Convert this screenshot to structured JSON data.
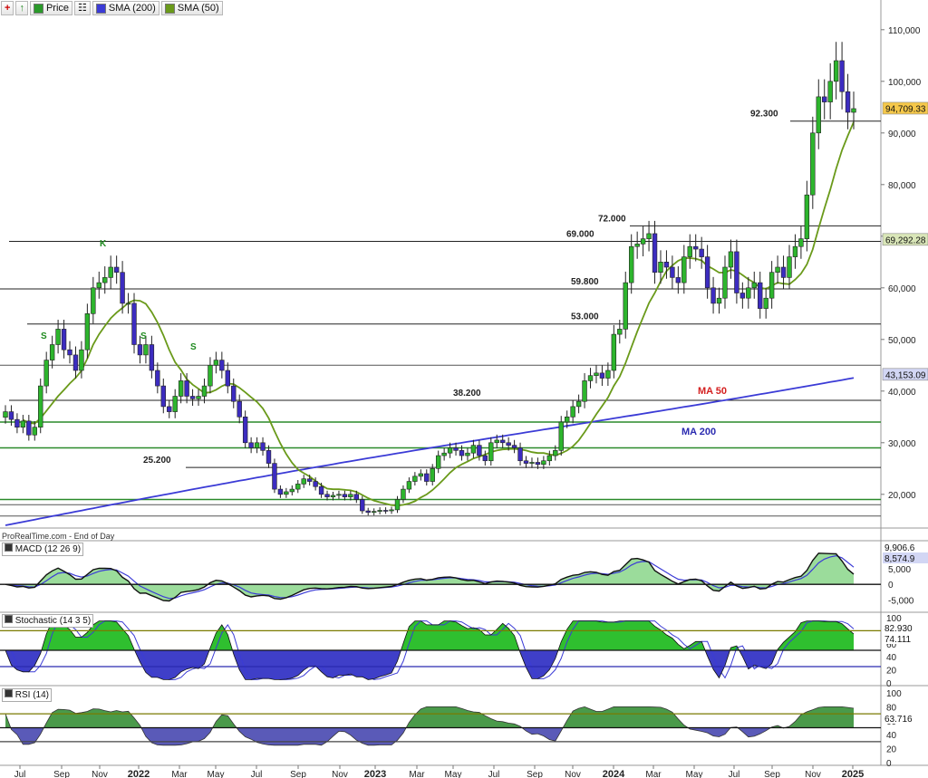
{
  "toolbar": {
    "price_label": "Price",
    "sma200_label": "SMA (200)",
    "sma50_label": "SMA (50)",
    "sma200_color": "#3b3bd6",
    "sma50_color": "#6a9a1a"
  },
  "footer_text": "ProRealTime.com - End of Day",
  "panels": {
    "macd_label": "MACD (12 26 9)",
    "stoch_label": "Stochastic (14 3 5)",
    "rsi_label": "RSI (14)"
  },
  "chart_data": [
    {
      "type": "candlestick",
      "x_ticks": [
        "Jul",
        "Sep",
        "Nov",
        "2022",
        "Mar",
        "May",
        "Jul",
        "Sep",
        "Nov",
        "2023",
        "Mar",
        "May",
        "Jul",
        "Sep",
        "Nov",
        "2024",
        "Mar",
        "May",
        "Jul",
        "Sep",
        "Nov",
        "2025"
      ],
      "y_ticks": [
        "20,000",
        "30,000",
        "40,000",
        "50,000",
        "60,000",
        "70,000",
        "80,000",
        "90,000",
        "100,000",
        "110,000"
      ],
      "ylim": [
        14000,
        114000
      ],
      "last_price_label": "94,709.33",
      "sma50_value_label": "69,292.28",
      "sma200_value_label": "43,153.09",
      "levels": [
        {
          "value": 92300,
          "label": "92.300"
        },
        {
          "value": 72000,
          "label": "72.000"
        },
        {
          "value": 69000,
          "label": "69.000"
        },
        {
          "value": 59800,
          "label": "59.800"
        },
        {
          "value": 53000,
          "label": "53.000"
        },
        {
          "value": 38200,
          "label": "38.200"
        },
        {
          "value": 25200,
          "label": "25.200"
        }
      ],
      "annotations": [
        {
          "text": "MA 50",
          "color": "#d42020"
        },
        {
          "text": "MA 200",
          "color": "#2a2ab0"
        },
        {
          "text": "K"
        },
        {
          "text": "S"
        },
        {
          "text": "S"
        },
        {
          "text": "S"
        }
      ],
      "weekly_close": [
        36000,
        34500,
        33000,
        34200,
        31500,
        33000,
        41000,
        46000,
        49000,
        52000,
        48000,
        47000,
        44000,
        48000,
        55000,
        60000,
        61000,
        62000,
        64000,
        63000,
        57000,
        57000,
        49000,
        47000,
        49000,
        44000,
        41000,
        37000,
        36000,
        39000,
        42000,
        39000,
        38500,
        39000,
        41000,
        45000,
        46000,
        44000,
        41000,
        38000,
        35000,
        30000,
        29000,
        30000,
        28500,
        26000,
        21000,
        20000,
        20500,
        21000,
        22000,
        23000,
        22500,
        21500,
        20000,
        19500,
        19800,
        20000,
        19500,
        20000,
        19000,
        16800,
        16500,
        16700,
        16900,
        16800,
        17000,
        19000,
        21000,
        22500,
        23500,
        24000,
        22500,
        25000,
        27500,
        28000,
        29000,
        28500,
        27500,
        28000,
        29500,
        27500,
        26500,
        30000,
        30500,
        30000,
        29500,
        29000,
        26500,
        26000,
        26200,
        25800,
        26500,
        27500,
        28500,
        34000,
        35000,
        37000,
        38000,
        42000,
        43000,
        43500,
        42500,
        44000,
        51000,
        52000,
        61000,
        68000,
        68500,
        69500,
        70500,
        63000,
        65000,
        64000,
        62000,
        61000,
        66000,
        68000,
        67500,
        66000,
        60000,
        57000,
        58000,
        64000,
        67000,
        59000,
        58000,
        60000,
        61000,
        56000,
        58000,
        63000,
        64000,
        62000,
        66000,
        68000,
        69500,
        78000,
        90000,
        97000,
        96000,
        100000,
        104000,
        98000,
        94000,
        94709
      ]
    },
    {
      "type": "line",
      "name": "MACD (12 26 9)",
      "value_labels": [
        "9,906.6",
        "8,574.9"
      ],
      "y_ticks": [
        "5,000",
        "0",
        "-5,000"
      ],
      "ylim": [
        -8000,
        13000
      ]
    },
    {
      "type": "line",
      "name": "Stochastic (14 3 5)",
      "value_labels": [
        "82.930",
        "74.111"
      ],
      "y_ticks": [
        "100",
        "80",
        "60",
        "40",
        "20",
        "0"
      ],
      "ylim": [
        0,
        100
      ],
      "levels": [
        80,
        50,
        25
      ]
    },
    {
      "type": "line",
      "name": "RSI (14)",
      "value_labels": [
        "63.716"
      ],
      "y_ticks": [
        "100",
        "80",
        "60",
        "40",
        "20",
        "0"
      ],
      "ylim": [
        0,
        100
      ],
      "levels": [
        70,
        50,
        30
      ]
    }
  ]
}
